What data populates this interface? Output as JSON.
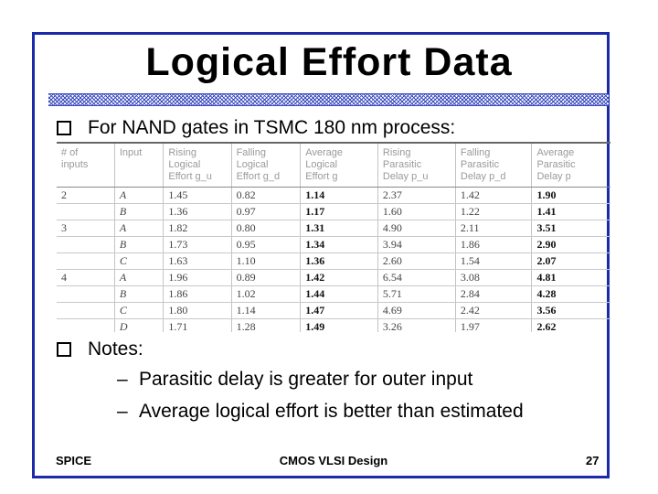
{
  "slide": {
    "title": "Logical Effort Data",
    "bullet1": "For NAND gates in TSMC 180 nm process:",
    "bullet2": "Notes:",
    "notes": [
      "Parasitic delay is greater for outer input",
      "Average logical effort is better than estimated"
    ],
    "footer": {
      "left": "SPICE",
      "center": "CMOS VLSI Design",
      "right": "27"
    }
  },
  "table": {
    "headers": [
      [
        "# of",
        "inputs"
      ],
      [
        "Input"
      ],
      [
        "Rising",
        "Logical",
        "Effort g_u"
      ],
      [
        "Falling",
        "Logical",
        "Effort g_d"
      ],
      [
        "Average",
        "Logical",
        "Effort g"
      ],
      [
        "Rising",
        "Parasitic",
        "Delay p_u"
      ],
      [
        "Falling",
        "Parasitic",
        "Delay p_d"
      ],
      [
        "Average",
        "Parasitic",
        "Delay p"
      ]
    ],
    "rows": [
      [
        "2",
        "A",
        "1.45",
        "0.82",
        "1.14",
        "2.37",
        "1.42",
        "1.90"
      ],
      [
        "",
        "B",
        "1.36",
        "0.97",
        "1.17",
        "1.60",
        "1.22",
        "1.41"
      ],
      [
        "3",
        "A",
        "1.82",
        "0.80",
        "1.31",
        "4.90",
        "2.11",
        "3.51"
      ],
      [
        "",
        "B",
        "1.73",
        "0.95",
        "1.34",
        "3.94",
        "1.86",
        "2.90"
      ],
      [
        "",
        "C",
        "1.63",
        "1.10",
        "1.36",
        "2.60",
        "1.54",
        "2.07"
      ],
      [
        "4",
        "A",
        "1.96",
        "0.89",
        "1.42",
        "6.54",
        "3.08",
        "4.81"
      ],
      [
        "",
        "B",
        "1.86",
        "1.02",
        "1.44",
        "5.71",
        "2.84",
        "4.28"
      ],
      [
        "",
        "C",
        "1.80",
        "1.14",
        "1.47",
        "4.69",
        "2.42",
        "3.56"
      ],
      [
        "",
        "D",
        "1.71",
        "1.28",
        "1.49",
        "3.26",
        "1.97",
        "2.62"
      ]
    ]
  }
}
